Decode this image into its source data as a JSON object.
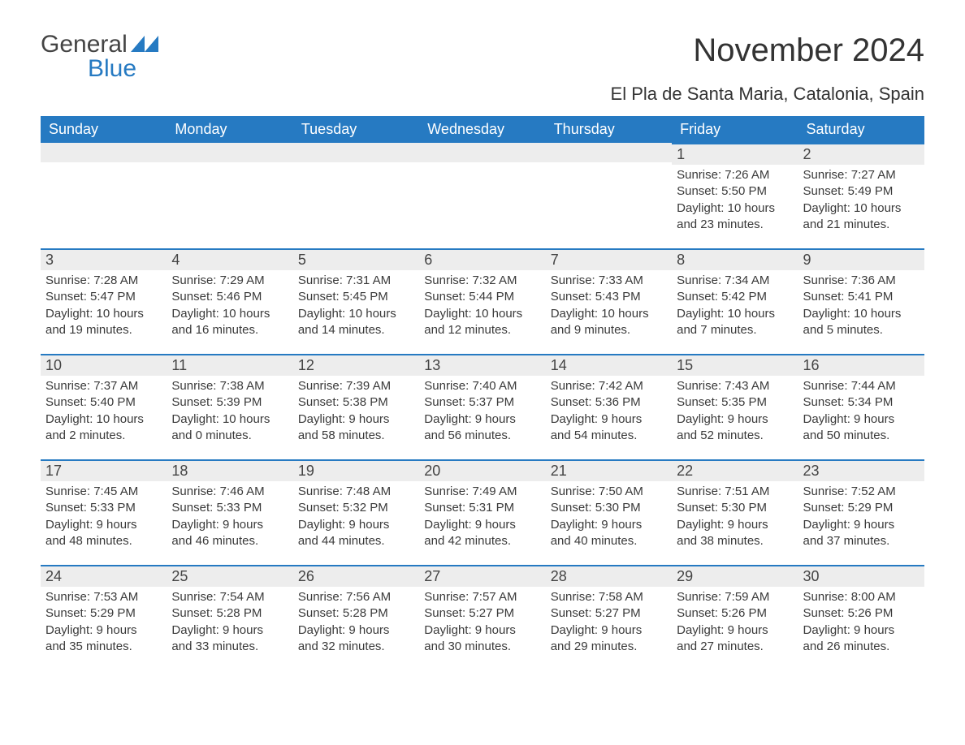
{
  "logo": {
    "word1": "General",
    "word2": "Blue",
    "shape_color": "#267ac2"
  },
  "title": "November 2024",
  "location": "El Pla de Santa Maria, Catalonia, Spain",
  "colors": {
    "header_bg": "#267ac2",
    "header_text": "#ffffff",
    "daynum_bg": "#ededed",
    "border_top": "#267ac2",
    "body_text": "#3a3a3a",
    "page_bg": "#ffffff"
  },
  "day_headers": [
    "Sunday",
    "Monday",
    "Tuesday",
    "Wednesday",
    "Thursday",
    "Friday",
    "Saturday"
  ],
  "weeks": [
    [
      {
        "blank": true
      },
      {
        "blank": true
      },
      {
        "blank": true
      },
      {
        "blank": true
      },
      {
        "blank": true
      },
      {
        "n": "1",
        "sr": "Sunrise: 7:26 AM",
        "ss": "Sunset: 5:50 PM",
        "d1": "Daylight: 10 hours",
        "d2": "and 23 minutes."
      },
      {
        "n": "2",
        "sr": "Sunrise: 7:27 AM",
        "ss": "Sunset: 5:49 PM",
        "d1": "Daylight: 10 hours",
        "d2": "and 21 minutes."
      }
    ],
    [
      {
        "n": "3",
        "sr": "Sunrise: 7:28 AM",
        "ss": "Sunset: 5:47 PM",
        "d1": "Daylight: 10 hours",
        "d2": "and 19 minutes."
      },
      {
        "n": "4",
        "sr": "Sunrise: 7:29 AM",
        "ss": "Sunset: 5:46 PM",
        "d1": "Daylight: 10 hours",
        "d2": "and 16 minutes."
      },
      {
        "n": "5",
        "sr": "Sunrise: 7:31 AM",
        "ss": "Sunset: 5:45 PM",
        "d1": "Daylight: 10 hours",
        "d2": "and 14 minutes."
      },
      {
        "n": "6",
        "sr": "Sunrise: 7:32 AM",
        "ss": "Sunset: 5:44 PM",
        "d1": "Daylight: 10 hours",
        "d2": "and 12 minutes."
      },
      {
        "n": "7",
        "sr": "Sunrise: 7:33 AM",
        "ss": "Sunset: 5:43 PM",
        "d1": "Daylight: 10 hours",
        "d2": "and 9 minutes."
      },
      {
        "n": "8",
        "sr": "Sunrise: 7:34 AM",
        "ss": "Sunset: 5:42 PM",
        "d1": "Daylight: 10 hours",
        "d2": "and 7 minutes."
      },
      {
        "n": "9",
        "sr": "Sunrise: 7:36 AM",
        "ss": "Sunset: 5:41 PM",
        "d1": "Daylight: 10 hours",
        "d2": "and 5 minutes."
      }
    ],
    [
      {
        "n": "10",
        "sr": "Sunrise: 7:37 AM",
        "ss": "Sunset: 5:40 PM",
        "d1": "Daylight: 10 hours",
        "d2": "and 2 minutes."
      },
      {
        "n": "11",
        "sr": "Sunrise: 7:38 AM",
        "ss": "Sunset: 5:39 PM",
        "d1": "Daylight: 10 hours",
        "d2": "and 0 minutes."
      },
      {
        "n": "12",
        "sr": "Sunrise: 7:39 AM",
        "ss": "Sunset: 5:38 PM",
        "d1": "Daylight: 9 hours",
        "d2": "and 58 minutes."
      },
      {
        "n": "13",
        "sr": "Sunrise: 7:40 AM",
        "ss": "Sunset: 5:37 PM",
        "d1": "Daylight: 9 hours",
        "d2": "and 56 minutes."
      },
      {
        "n": "14",
        "sr": "Sunrise: 7:42 AM",
        "ss": "Sunset: 5:36 PM",
        "d1": "Daylight: 9 hours",
        "d2": "and 54 minutes."
      },
      {
        "n": "15",
        "sr": "Sunrise: 7:43 AM",
        "ss": "Sunset: 5:35 PM",
        "d1": "Daylight: 9 hours",
        "d2": "and 52 minutes."
      },
      {
        "n": "16",
        "sr": "Sunrise: 7:44 AM",
        "ss": "Sunset: 5:34 PM",
        "d1": "Daylight: 9 hours",
        "d2": "and 50 minutes."
      }
    ],
    [
      {
        "n": "17",
        "sr": "Sunrise: 7:45 AM",
        "ss": "Sunset: 5:33 PM",
        "d1": "Daylight: 9 hours",
        "d2": "and 48 minutes."
      },
      {
        "n": "18",
        "sr": "Sunrise: 7:46 AM",
        "ss": "Sunset: 5:33 PM",
        "d1": "Daylight: 9 hours",
        "d2": "and 46 minutes."
      },
      {
        "n": "19",
        "sr": "Sunrise: 7:48 AM",
        "ss": "Sunset: 5:32 PM",
        "d1": "Daylight: 9 hours",
        "d2": "and 44 minutes."
      },
      {
        "n": "20",
        "sr": "Sunrise: 7:49 AM",
        "ss": "Sunset: 5:31 PM",
        "d1": "Daylight: 9 hours",
        "d2": "and 42 minutes."
      },
      {
        "n": "21",
        "sr": "Sunrise: 7:50 AM",
        "ss": "Sunset: 5:30 PM",
        "d1": "Daylight: 9 hours",
        "d2": "and 40 minutes."
      },
      {
        "n": "22",
        "sr": "Sunrise: 7:51 AM",
        "ss": "Sunset: 5:30 PM",
        "d1": "Daylight: 9 hours",
        "d2": "and 38 minutes."
      },
      {
        "n": "23",
        "sr": "Sunrise: 7:52 AM",
        "ss": "Sunset: 5:29 PM",
        "d1": "Daylight: 9 hours",
        "d2": "and 37 minutes."
      }
    ],
    [
      {
        "n": "24",
        "sr": "Sunrise: 7:53 AM",
        "ss": "Sunset: 5:29 PM",
        "d1": "Daylight: 9 hours",
        "d2": "and 35 minutes."
      },
      {
        "n": "25",
        "sr": "Sunrise: 7:54 AM",
        "ss": "Sunset: 5:28 PM",
        "d1": "Daylight: 9 hours",
        "d2": "and 33 minutes."
      },
      {
        "n": "26",
        "sr": "Sunrise: 7:56 AM",
        "ss": "Sunset: 5:28 PM",
        "d1": "Daylight: 9 hours",
        "d2": "and 32 minutes."
      },
      {
        "n": "27",
        "sr": "Sunrise: 7:57 AM",
        "ss": "Sunset: 5:27 PM",
        "d1": "Daylight: 9 hours",
        "d2": "and 30 minutes."
      },
      {
        "n": "28",
        "sr": "Sunrise: 7:58 AM",
        "ss": "Sunset: 5:27 PM",
        "d1": "Daylight: 9 hours",
        "d2": "and 29 minutes."
      },
      {
        "n": "29",
        "sr": "Sunrise: 7:59 AM",
        "ss": "Sunset: 5:26 PM",
        "d1": "Daylight: 9 hours",
        "d2": "and 27 minutes."
      },
      {
        "n": "30",
        "sr": "Sunrise: 8:00 AM",
        "ss": "Sunset: 5:26 PM",
        "d1": "Daylight: 9 hours",
        "d2": "and 26 minutes."
      }
    ]
  ]
}
